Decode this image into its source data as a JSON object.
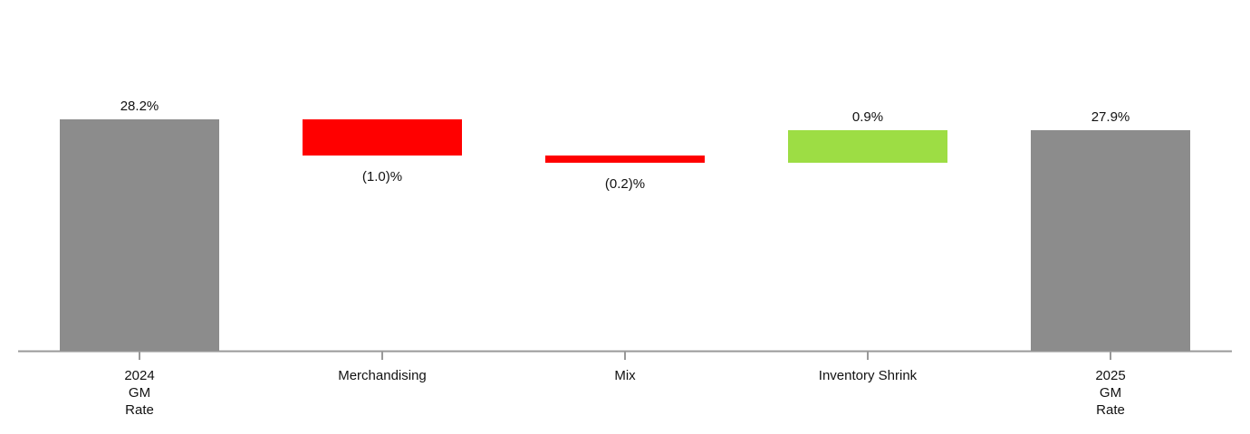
{
  "chart_data": {
    "type": "waterfall",
    "categories": [
      "2024\nGM\nRate",
      "Merchandising",
      "Mix",
      "Inventory Shrink",
      "2025\nGM\nRate"
    ],
    "values": [
      28.2,
      -1.0,
      -0.2,
      0.9,
      27.9
    ],
    "value_labels": [
      "28.2%",
      "(1.0)%",
      "(0.2)%",
      "0.9%",
      "27.9%"
    ],
    "measures": [
      "absolute",
      "relative",
      "relative",
      "relative",
      "total"
    ],
    "total_color": "#8c8c8c",
    "decreasing_color": "#ff0000",
    "increasing_color": "#9ddd44",
    "ylim": [
      21.8,
      30
    ]
  }
}
